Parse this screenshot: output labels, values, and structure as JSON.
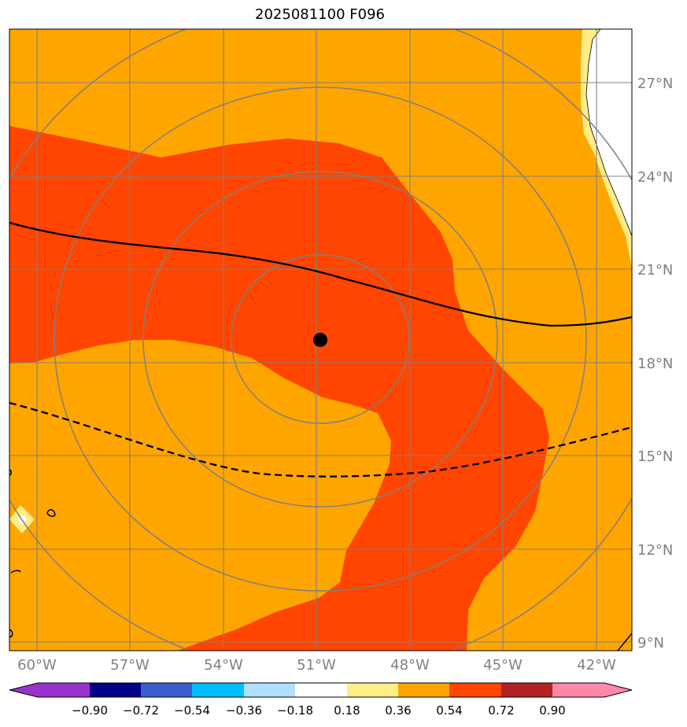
{
  "title": "2025081100 F096",
  "map": {
    "lat_labels": [
      "27°N",
      "24°N",
      "21°N",
      "18°N",
      "15°N",
      "12°N",
      "9°N"
    ],
    "lon_labels": [
      "60°W",
      "57°W",
      "54°W",
      "51°W",
      "48°W",
      "45°W",
      "42°W"
    ],
    "center_marker": {
      "lon": -51.0,
      "lat": 18.8
    },
    "colors": {
      "background_field": "#ffa500",
      "high_field": "#ff4500",
      "land": "#ffffff",
      "light_band": "#ffee88",
      "gridline": "#808080",
      "contour": "#000000"
    }
  },
  "colorbar": {
    "tick_labels": [
      "−0.90",
      "−0.72",
      "−0.54",
      "−0.36",
      "−0.18",
      "0.18",
      "0.36",
      "0.54",
      "0.72",
      "0.90"
    ],
    "colors": [
      "#9932cc",
      "#00008b",
      "#3a5fcd",
      "#00bfff",
      "#b0e0ff",
      "#ffffff",
      "#ffee88",
      "#ffa500",
      "#ff4500",
      "#b22222",
      "#ff88aa"
    ]
  }
}
